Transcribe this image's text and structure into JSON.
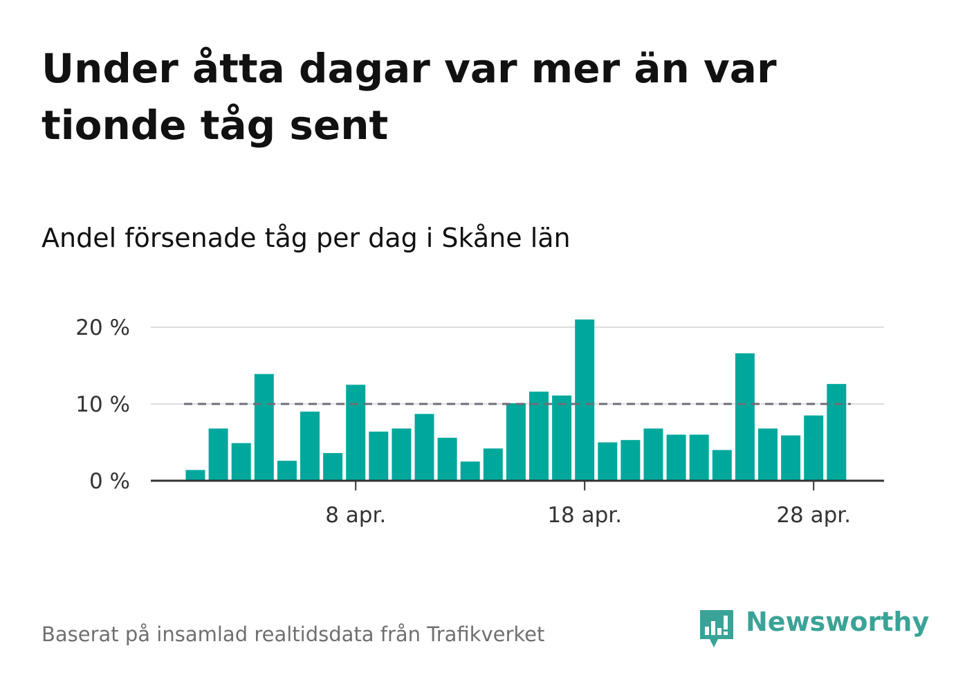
{
  "title": "Under åtta dagar var mer än var tionde tåg sent",
  "subtitle": "Andel försenade tåg per dag i Skåne län",
  "source": "Baserat på insamlad realtidsdata från Trafikverket",
  "brand": {
    "name": "Newsworthy",
    "color": "#3aa397",
    "icon": "bar-chart-speech-bubble-icon"
  },
  "colors": {
    "bar": "#00a89c",
    "reference_line": "#6e6e78",
    "grid": "#dddddd",
    "axis": "#333333"
  },
  "chart_data": {
    "type": "bar",
    "x": [
      "2019-04-01",
      "2019-04-02",
      "2019-04-03",
      "2019-04-04",
      "2019-04-05",
      "2019-04-06",
      "2019-04-07",
      "2019-04-08",
      "2019-04-09",
      "2019-04-10",
      "2019-04-11",
      "2019-04-12",
      "2019-04-13",
      "2019-04-14",
      "2019-04-15",
      "2019-04-16",
      "2019-04-17",
      "2019-04-18",
      "2019-04-19",
      "2019-04-20",
      "2019-04-21",
      "2019-04-22",
      "2019-04-23",
      "2019-04-24",
      "2019-04-25",
      "2019-04-26",
      "2019-04-27",
      "2019-04-28",
      "2019-04-29"
    ],
    "values": [
      1.4,
      6.8,
      4.9,
      13.9,
      2.6,
      9.0,
      3.6,
      12.5,
      6.4,
      6.8,
      8.7,
      5.6,
      2.5,
      4.2,
      10.1,
      11.6,
      11.1,
      21.0,
      5.0,
      5.3,
      6.8,
      6.0,
      6.0,
      4.0,
      16.6,
      6.8,
      5.9,
      8.5,
      12.6
    ],
    "unit": "%",
    "ylim": [
      0,
      21
    ],
    "y_ticks": [
      0,
      10,
      20
    ],
    "y_tick_labels": [
      "0 %",
      "10 %",
      "20 %"
    ],
    "x_ticks": [
      "2019-04-08",
      "2019-04-18",
      "2019-04-28"
    ],
    "x_tick_labels": [
      "8 apr.",
      "18 apr.",
      "28 apr."
    ],
    "reference_line": 10,
    "grid": true
  }
}
